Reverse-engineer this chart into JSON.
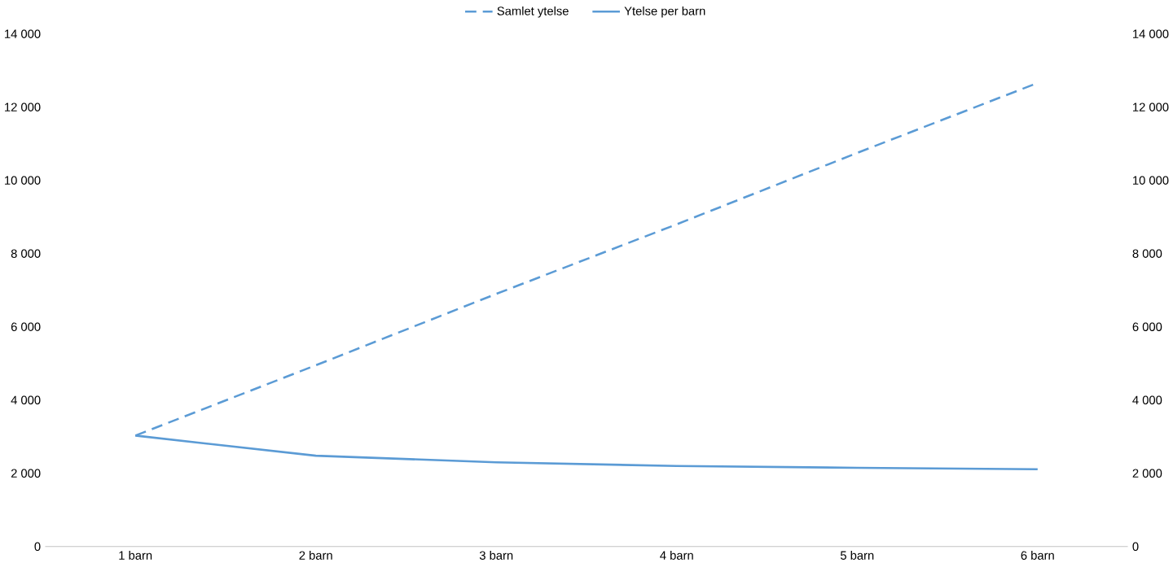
{
  "chart_data": {
    "type": "line",
    "categories": [
      "1 barn",
      "2 barn",
      "3 barn",
      "4 barn",
      "5 barn",
      "6 barn"
    ],
    "series": [
      {
        "name": "Samlet ytelse",
        "color": "#5b9bd5",
        "line_style": "dashed",
        "values": [
          3030,
          4950,
          6900,
          8800,
          10750,
          12660
        ]
      },
      {
        "name": "Ytelse per barn",
        "color": "#5b9bd5",
        "line_style": "solid",
        "values": [
          3030,
          2480,
          2300,
          2200,
          2150,
          2110
        ]
      }
    ],
    "ylim": [
      0,
      14000
    ],
    "yticks": [
      {
        "value": 0,
        "label": "0"
      },
      {
        "value": 2000,
        "label": "2 000"
      },
      {
        "value": 4000,
        "label": "4 000"
      },
      {
        "value": 6000,
        "label": "6 000"
      },
      {
        "value": 8000,
        "label": "8 000"
      },
      {
        "value": 10000,
        "label": "10 000"
      },
      {
        "value": 12000,
        "label": "12 000"
      },
      {
        "value": 14000,
        "label": "14 000"
      }
    ],
    "y2lim": [
      0,
      14000
    ],
    "y2ticks": [
      {
        "value": 0,
        "label": "0"
      },
      {
        "value": 2000,
        "label": "2 000"
      },
      {
        "value": 4000,
        "label": "4 000"
      },
      {
        "value": 6000,
        "label": "6 000"
      },
      {
        "value": 8000,
        "label": "8 000"
      },
      {
        "value": 10000,
        "label": "10 000"
      },
      {
        "value": 12000,
        "label": "12 000"
      },
      {
        "value": 14000,
        "label": "14 000"
      }
    ],
    "legend": "top",
    "grid": false
  }
}
